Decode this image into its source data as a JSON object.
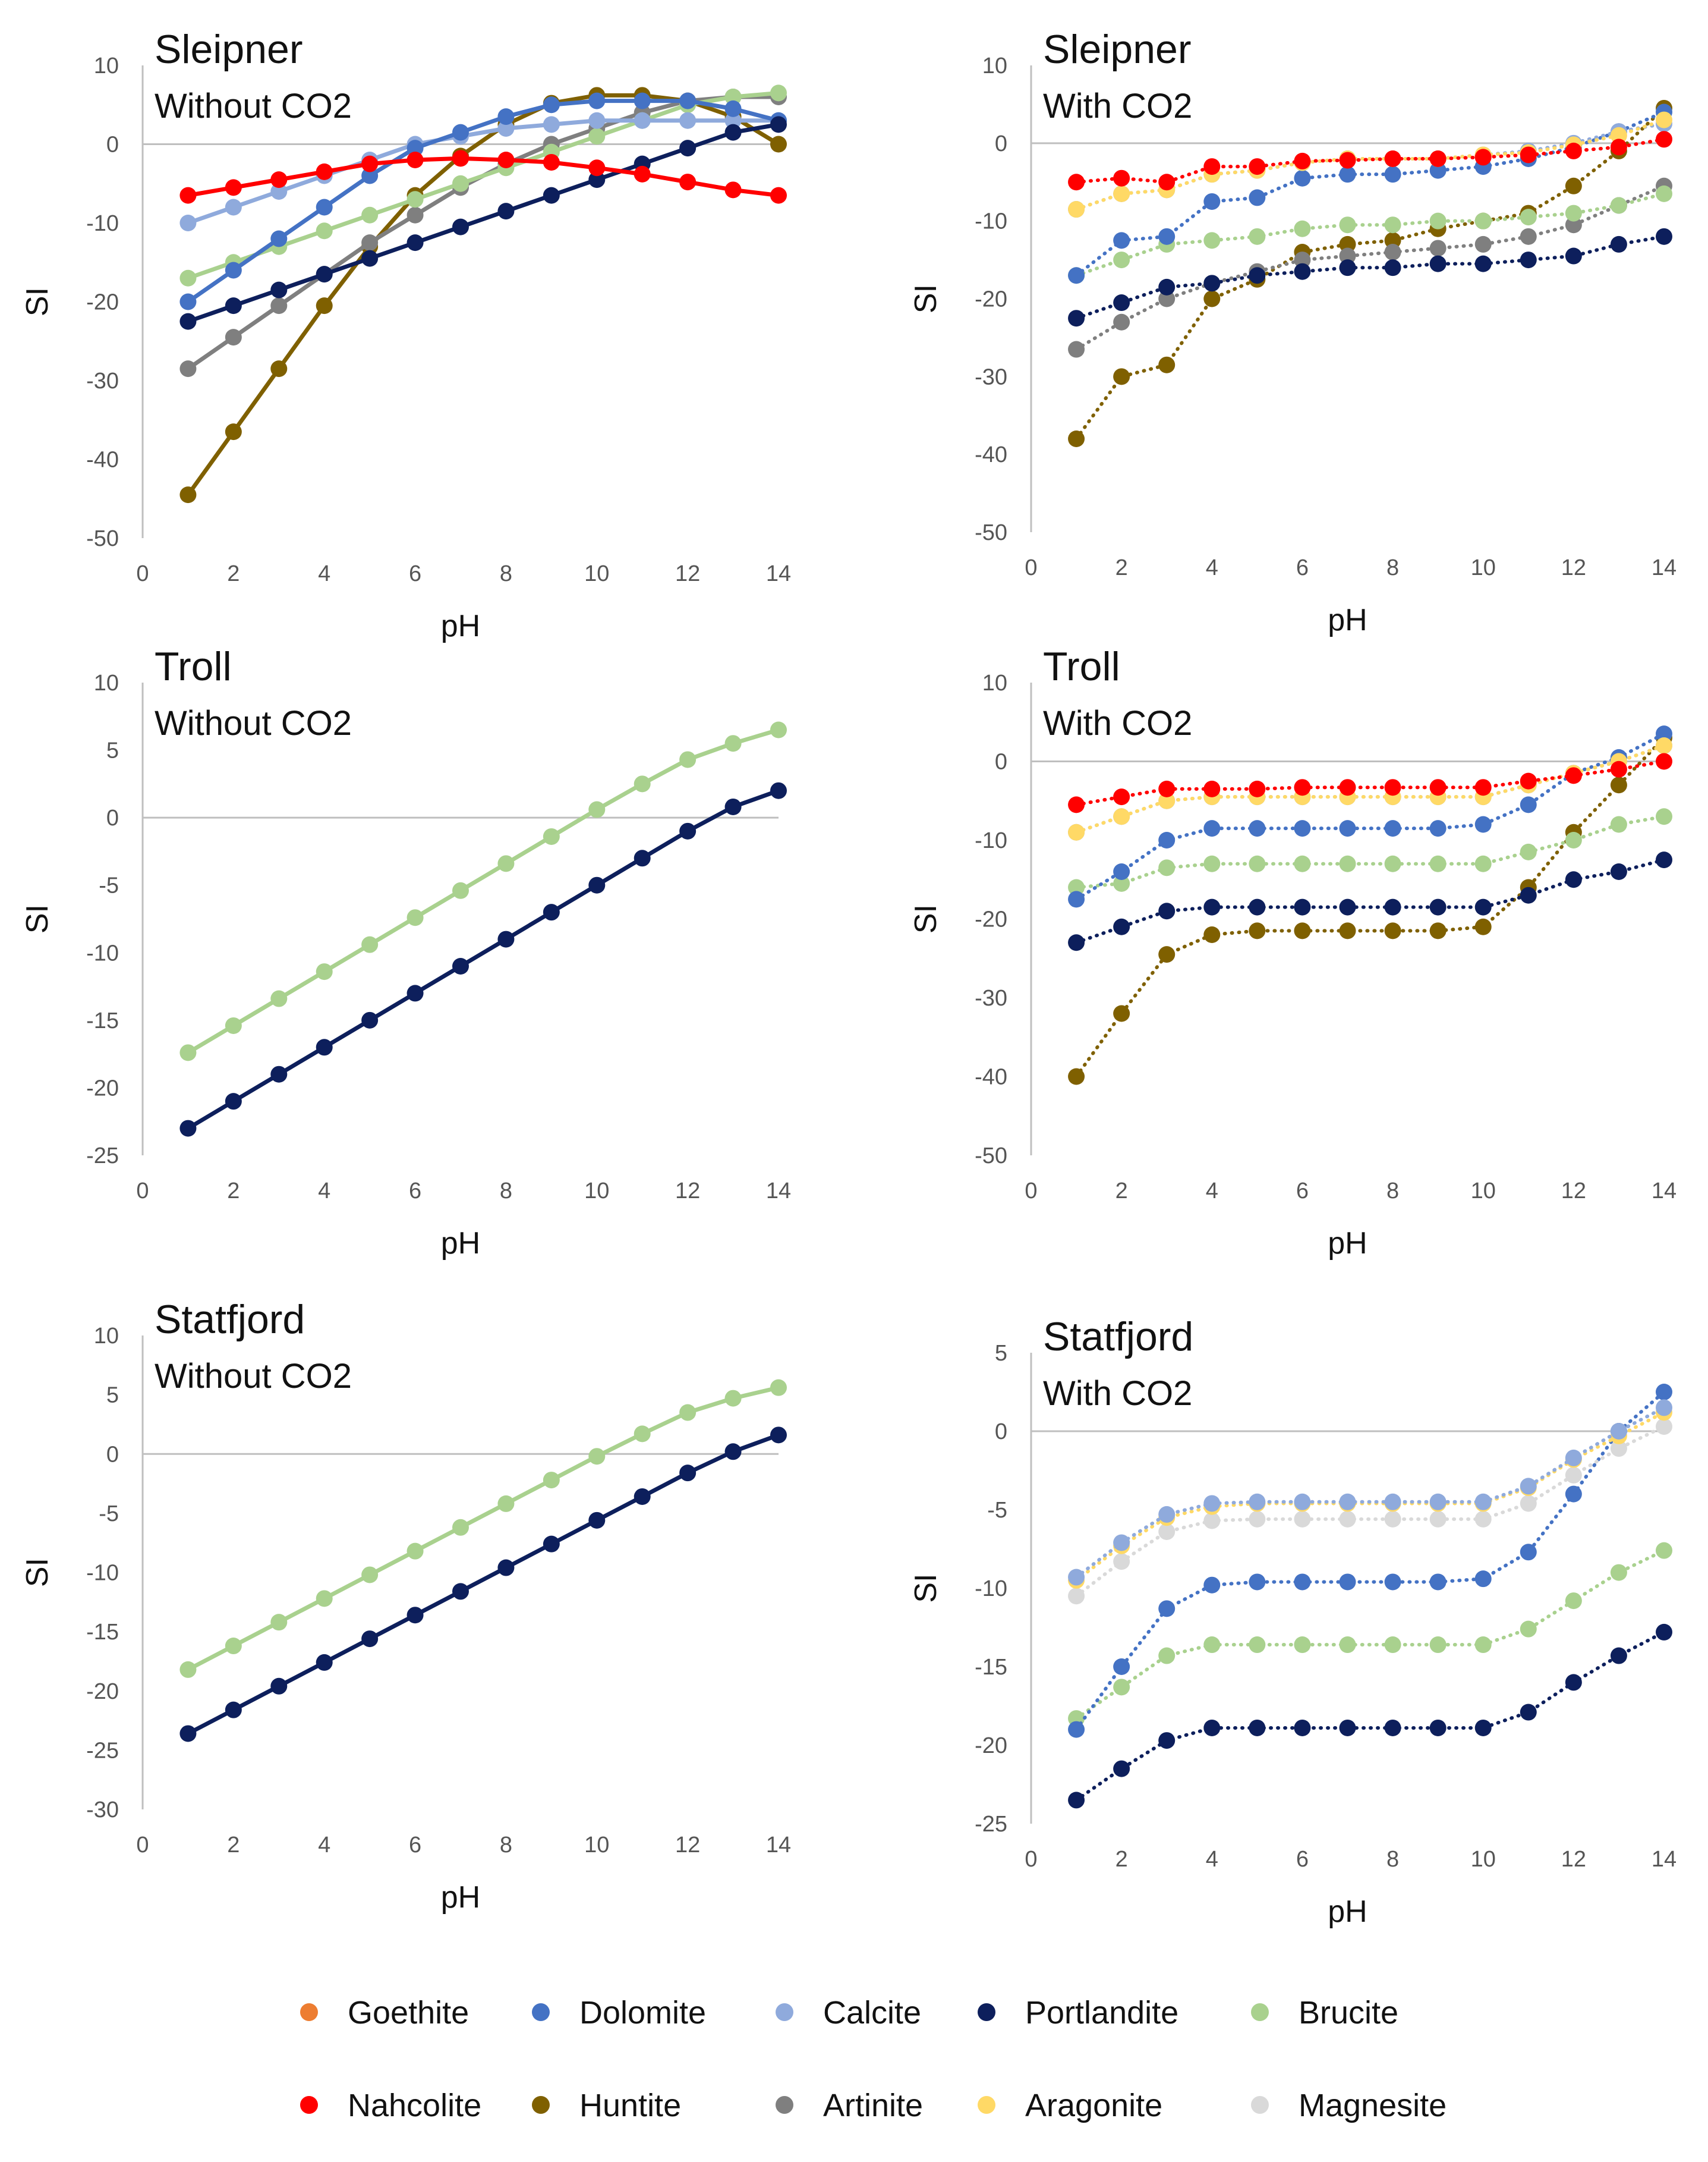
{
  "colors": {
    "Goethite": "#ED7D31",
    "Dolomite": "#4472C4",
    "Calcite": "#8FAADC",
    "Portlandite": "#0D1F5C",
    "Brucite": "#A9D18E",
    "Nahcolite": "#FF0000",
    "Huntite": "#7F6000",
    "Artinite": "#7F7F7F",
    "Aragonite": "#FFD966",
    "Magnesite": "#D9D9D9"
  },
  "legend": {
    "items": [
      "Goethite",
      "Dolomite",
      "Calcite",
      "Portlandite",
      "Brucite",
      "Nahcolite",
      "Huntite",
      "Artinite",
      "Aragonite",
      "Magnesite"
    ]
  },
  "chart_data": [
    {
      "id": "sleipner-without",
      "type": "line",
      "title": "Sleipner",
      "subtitle": "Without CO2",
      "xlabel": "pH",
      "ylabel": "SI",
      "xlim": [
        0,
        14
      ],
      "ylim": [
        -50,
        10
      ],
      "xticks": [
        0,
        2,
        4,
        6,
        8,
        10,
        12,
        14
      ],
      "yticks": [
        10,
        0,
        -10,
        -20,
        -30,
        -40,
        -50
      ],
      "dotted": false,
      "x": [
        1,
        2,
        3,
        4,
        5,
        6,
        7,
        8,
        9,
        10,
        11,
        12,
        13,
        14
      ],
      "series": [
        {
          "name": "Huntite",
          "values": [
            -44.5,
            -36.5,
            -28.5,
            -20.5,
            -13,
            -6.5,
            -1.5,
            2.5,
            5.2,
            6.2,
            6.2,
            5.5,
            3.5,
            0
          ]
        },
        {
          "name": "Artinite",
          "values": [
            -28.5,
            -24.5,
            -20.5,
            -16.5,
            -12.5,
            -9,
            -5.5,
            -2.5,
            0,
            2,
            4,
            5.5,
            6,
            6
          ]
        },
        {
          "name": "Brucite",
          "values": [
            -17,
            -15,
            -13,
            -11,
            -9,
            -7,
            -5,
            -3,
            -1,
            1,
            3,
            5,
            6,
            6.5
          ]
        },
        {
          "name": "Calcite",
          "values": [
            -10,
            -8,
            -6,
            -4,
            -2,
            0,
            1,
            2,
            2.5,
            3,
            3,
            3,
            3,
            3
          ]
        },
        {
          "name": "Dolomite",
          "values": [
            -20,
            -16,
            -12,
            -8,
            -4,
            -0.5,
            1.5,
            3.5,
            5,
            5.5,
            5.5,
            5.5,
            4.5,
            3
          ]
        },
        {
          "name": "Portlandite",
          "values": [
            -22.5,
            -20.5,
            -18.5,
            -16.5,
            -14.5,
            -12.5,
            -10.5,
            -8.5,
            -6.5,
            -4.5,
            -2.5,
            -0.5,
            1.5,
            2.5
          ]
        },
        {
          "name": "Nahcolite",
          "values": [
            -6.5,
            -5.5,
            -4.5,
            -3.5,
            -2.5,
            -2,
            -1.8,
            -2,
            -2.3,
            -3,
            -3.8,
            -4.8,
            -5.8,
            -6.5
          ]
        }
      ]
    },
    {
      "id": "sleipner-with",
      "type": "line",
      "title": "Sleipner",
      "subtitle": "With CO2",
      "xlabel": "pH",
      "ylabel": "SI",
      "xlim": [
        0,
        14
      ],
      "ylim": [
        -50,
        10
      ],
      "xticks": [
        0,
        2,
        4,
        6,
        8,
        10,
        12,
        14
      ],
      "yticks": [
        10,
        0,
        -10,
        -20,
        -30,
        -40,
        -50
      ],
      "dotted": true,
      "x": [
        1,
        2,
        3,
        4,
        5,
        6,
        7,
        8,
        9,
        10,
        11,
        12,
        13,
        14
      ],
      "series": [
        {
          "name": "Huntite",
          "values": [
            -38,
            -30,
            -28.5,
            -20,
            -17.5,
            -14,
            -13,
            -12.5,
            -11,
            -10,
            -9,
            -5.5,
            -1,
            4.5
          ]
        },
        {
          "name": "Artinite",
          "values": [
            -26.5,
            -23,
            -20,
            -18,
            -16.5,
            -15,
            -14.5,
            -14,
            -13.5,
            -13,
            -12,
            -10.5,
            -8,
            -5.5
          ]
        },
        {
          "name": "Portlandite",
          "values": [
            -22.5,
            -20.5,
            -18.5,
            -18,
            -17,
            -16.5,
            -16,
            -16,
            -15.5,
            -15.5,
            -15,
            -14.5,
            -13,
            -12
          ]
        },
        {
          "name": "Brucite",
          "values": [
            -17,
            -15,
            -13,
            -12.5,
            -12,
            -11,
            -10.5,
            -10.5,
            -10,
            -10,
            -9.5,
            -9,
            -8,
            -6.5
          ]
        },
        {
          "name": "Dolomite",
          "values": [
            -17,
            -12.5,
            -12,
            -7.5,
            -7,
            -4.5,
            -4,
            -4,
            -3.5,
            -3,
            -2,
            -0.5,
            1.5,
            4
          ]
        },
        {
          "name": "Calcite",
          "values": [
            -8.5,
            -6.5,
            -6,
            -4,
            -3.5,
            -2.5,
            -2,
            -2,
            -2,
            -1.5,
            -1,
            0,
            1.5,
            2.5
          ]
        },
        {
          "name": "Aragonite",
          "values": [
            -8.5,
            -6.5,
            -6,
            -4,
            -3.5,
            -2.5,
            -2,
            -2,
            -2,
            -1.5,
            -1.2,
            -0.2,
            1,
            3
          ]
        },
        {
          "name": "Nahcolite",
          "values": [
            -5,
            -4.5,
            -5,
            -3,
            -3,
            -2.3,
            -2.2,
            -2,
            -2,
            -1.8,
            -1.5,
            -1,
            -0.5,
            0.5
          ]
        }
      ]
    },
    {
      "id": "troll-without",
      "type": "line",
      "title": "Troll",
      "subtitle": "Without CO2",
      "xlabel": "pH",
      "ylabel": "SI",
      "xlim": [
        0,
        14
      ],
      "ylim": [
        -25,
        10
      ],
      "xticks": [
        0,
        2,
        4,
        6,
        8,
        10,
        12,
        14
      ],
      "yticks": [
        10,
        5,
        0,
        -5,
        -10,
        -15,
        -20,
        -25
      ],
      "dotted": false,
      "x": [
        1,
        2,
        3,
        4,
        5,
        6,
        7,
        8,
        9,
        10,
        11,
        12,
        13,
        14
      ],
      "series": [
        {
          "name": "Brucite",
          "values": [
            -17.4,
            -15.4,
            -13.4,
            -11.4,
            -9.4,
            -7.4,
            -5.4,
            -3.4,
            -1.4,
            0.6,
            2.5,
            4.3,
            5.5,
            6.5
          ]
        },
        {
          "name": "Portlandite",
          "values": [
            -23,
            -21,
            -19,
            -17,
            -15,
            -13,
            -11,
            -9,
            -7,
            -5,
            -3,
            -1,
            0.8,
            2
          ]
        }
      ]
    },
    {
      "id": "troll-with",
      "type": "line",
      "title": "Troll",
      "subtitle": "With CO2",
      "xlabel": "pH",
      "ylabel": "SI",
      "xlim": [
        0,
        14
      ],
      "ylim": [
        -50,
        10
      ],
      "xticks": [
        0,
        2,
        4,
        6,
        8,
        10,
        12,
        14
      ],
      "yticks": [
        10,
        0,
        -10,
        -20,
        -30,
        -40,
        -50
      ],
      "dotted": true,
      "x": [
        1,
        2,
        3,
        4,
        5,
        6,
        7,
        8,
        9,
        10,
        11,
        12,
        13,
        14
      ],
      "series": [
        {
          "name": "Huntite",
          "values": [
            -40,
            -32,
            -24.5,
            -22,
            -21.5,
            -21.5,
            -21.5,
            -21.5,
            -21.5,
            -21,
            -16,
            -9,
            -3,
            3
          ]
        },
        {
          "name": "Portlandite",
          "values": [
            -23,
            -21,
            -19,
            -18.5,
            -18.5,
            -18.5,
            -18.5,
            -18.5,
            -18.5,
            -18.5,
            -17,
            -15,
            -14,
            -12.5
          ]
        },
        {
          "name": "Brucite",
          "values": [
            -16,
            -15.5,
            -13.5,
            -13,
            -13,
            -13,
            -13,
            -13,
            -13,
            -13,
            -11.5,
            -10,
            -8,
            -7
          ]
        },
        {
          "name": "Dolomite",
          "values": [
            -17.5,
            -14,
            -10,
            -8.5,
            -8.5,
            -8.5,
            -8.5,
            -8.5,
            -8.5,
            -8,
            -5.5,
            -1.5,
            0.5,
            3.5
          ]
        },
        {
          "name": "Calcite",
          "values": [
            -9,
            -7,
            -5,
            -4.5,
            -4.5,
            -4.5,
            -4.5,
            -4.5,
            -4.5,
            -4.5,
            -3,
            -1.5,
            0,
            2
          ]
        },
        {
          "name": "Aragonite",
          "values": [
            -9,
            -7,
            -5,
            -4.5,
            -4.5,
            -4.5,
            -4.5,
            -4.5,
            -4.5,
            -4.5,
            -3,
            -1.5,
            0,
            2
          ]
        },
        {
          "name": "Nahcolite",
          "values": [
            -5.5,
            -4.5,
            -3.5,
            -3.5,
            -3.5,
            -3.3,
            -3.3,
            -3.3,
            -3.3,
            -3.3,
            -2.5,
            -1.8,
            -1,
            0
          ]
        }
      ]
    },
    {
      "id": "statfjord-without",
      "type": "line",
      "title": "Statfjord",
      "subtitle": "Without CO2",
      "xlabel": "pH",
      "ylabel": "SI",
      "xlim": [
        0,
        14
      ],
      "ylim": [
        -30,
        10
      ],
      "xticks": [
        0,
        2,
        4,
        6,
        8,
        10,
        12,
        14
      ],
      "yticks": [
        10,
        5,
        0,
        -5,
        -10,
        -15,
        -20,
        -25,
        -30
      ],
      "dotted": false,
      "x": [
        1,
        2,
        3,
        4,
        5,
        6,
        7,
        8,
        9,
        10,
        11,
        12,
        13,
        14
      ],
      "series": [
        {
          "name": "Brucite",
          "values": [
            -18.2,
            -16.2,
            -14.2,
            -12.2,
            -10.2,
            -8.2,
            -6.2,
            -4.2,
            -2.2,
            -0.2,
            1.7,
            3.5,
            4.7,
            5.6
          ]
        },
        {
          "name": "Portlandite",
          "values": [
            -23.6,
            -21.6,
            -19.6,
            -17.6,
            -15.6,
            -13.6,
            -11.6,
            -9.6,
            -7.6,
            -5.6,
            -3.6,
            -1.6,
            0.2,
            1.6
          ]
        }
      ]
    },
    {
      "id": "statfjord-with",
      "type": "line",
      "title": "Statfjord",
      "subtitle": "With CO2",
      "xlabel": "pH",
      "ylabel": "SI",
      "xlim": [
        0,
        14
      ],
      "ylim": [
        -25,
        5
      ],
      "xticks": [
        0,
        2,
        4,
        6,
        8,
        10,
        12,
        14
      ],
      "yticks": [
        5,
        0,
        -5,
        -10,
        -15,
        -20,
        -25
      ],
      "dotted": true,
      "x": [
        1,
        2,
        3,
        4,
        5,
        6,
        7,
        8,
        9,
        10,
        11,
        12,
        13,
        14
      ],
      "series": [
        {
          "name": "Portlandite",
          "values": [
            -23.5,
            -21.5,
            -19.7,
            -18.9,
            -18.9,
            -18.9,
            -18.9,
            -18.9,
            -18.9,
            -18.9,
            -17.9,
            -16,
            -14.3,
            -12.8
          ]
        },
        {
          "name": "Brucite",
          "values": [
            -18.3,
            -16.3,
            -14.3,
            -13.6,
            -13.6,
            -13.6,
            -13.6,
            -13.6,
            -13.6,
            -13.6,
            -12.6,
            -10.8,
            -9,
            -7.6
          ]
        },
        {
          "name": "Dolomite",
          "values": [
            -19,
            -15,
            -11.3,
            -9.8,
            -9.6,
            -9.6,
            -9.6,
            -9.6,
            -9.6,
            -9.4,
            -7.7,
            -4,
            0,
            2.5
          ]
        },
        {
          "name": "Magnesite",
          "values": [
            -10.5,
            -8.3,
            -6.4,
            -5.7,
            -5.6,
            -5.6,
            -5.6,
            -5.6,
            -5.6,
            -5.6,
            -4.6,
            -2.8,
            -1.1,
            0.3
          ]
        },
        {
          "name": "Aragonite",
          "values": [
            -9.5,
            -7.3,
            -5.5,
            -4.8,
            -4.6,
            -4.6,
            -4.6,
            -4.6,
            -4.6,
            -4.6,
            -3.6,
            -1.8,
            -0.3,
            1.2
          ]
        },
        {
          "name": "Calcite",
          "values": [
            -9.3,
            -7.1,
            -5.3,
            -4.6,
            -4.5,
            -4.5,
            -4.5,
            -4.5,
            -4.5,
            -4.5,
            -3.5,
            -1.7,
            0,
            1.5
          ]
        }
      ]
    }
  ]
}
